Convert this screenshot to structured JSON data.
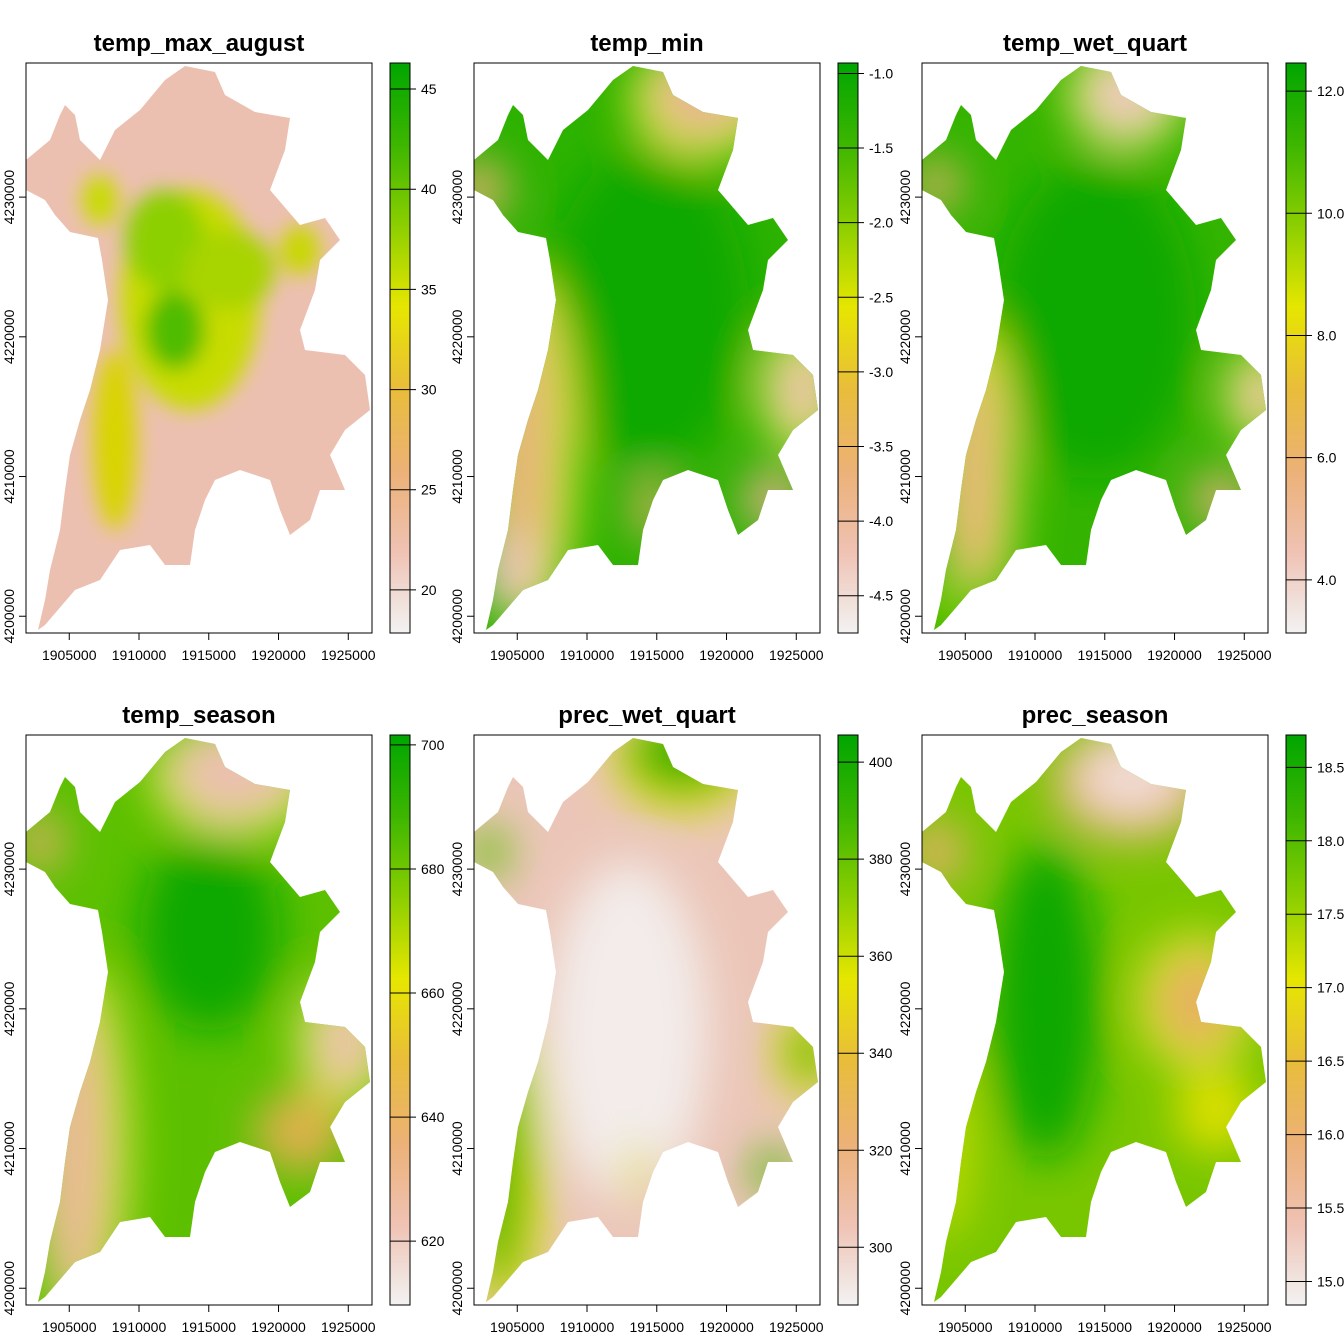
{
  "chart_data": [
    {
      "type": "heatmap",
      "title": "temp_max_august",
      "xlim": [
        1901900,
        1926700
      ],
      "ylim": [
        4198800,
        4239600
      ],
      "x_ticks": [
        1905000,
        1910000,
        1915000,
        1920000,
        1925000
      ],
      "x_tick_labels": [
        "1905000",
        "1910000",
        "1915000",
        "1920000",
        "1925000"
      ],
      "y_ticks": [
        4200000,
        4210000,
        4220000,
        4230000
      ],
      "y_tick_labels": [
        "4200000",
        "4210000",
        "4220000",
        "4230000"
      ],
      "legend_range": [
        17.85,
        46.3
      ],
      "legend_ticks": [
        20,
        25,
        30,
        35,
        40,
        45
      ],
      "legend_tick_labels": [
        "20",
        "25",
        "30",
        "35",
        "40",
        "45"
      ]
    },
    {
      "type": "heatmap",
      "title": "temp_min",
      "xlim": [
        1901900,
        1926700
      ],
      "ylim": [
        4198800,
        4239600
      ],
      "x_ticks": [
        1905000,
        1910000,
        1915000,
        1920000,
        1925000
      ],
      "x_tick_labels": [
        "1905000",
        "1910000",
        "1915000",
        "1920000",
        "1925000"
      ],
      "y_ticks": [
        4200000,
        4210000,
        4220000,
        4230000
      ],
      "y_tick_labels": [
        "4200000",
        "4210000",
        "4220000",
        "4230000"
      ],
      "legend_range": [
        -4.75,
        -0.93
      ],
      "legend_ticks": [
        -4.5,
        -4.0,
        -3.5,
        -3.0,
        -2.5,
        -2.0,
        -1.5,
        -1.0
      ],
      "legend_tick_labels": [
        "-4.5",
        "-4.0",
        "-3.5",
        "-3.0",
        "-2.5",
        "-2.0",
        "-1.5",
        "-1.0"
      ]
    },
    {
      "type": "heatmap",
      "title": "temp_wet_quart",
      "xlim": [
        1901900,
        1926700
      ],
      "ylim": [
        4198800,
        4239600
      ],
      "x_ticks": [
        1905000,
        1910000,
        1915000,
        1920000,
        1925000
      ],
      "x_tick_labels": [
        "1905000",
        "1910000",
        "1915000",
        "1920000",
        "1925000"
      ],
      "y_ticks": [
        4200000,
        4210000,
        4220000,
        4230000
      ],
      "y_tick_labels": [
        "4200000",
        "4210000",
        "4220000",
        "4230000"
      ],
      "legend_range": [
        3.13,
        12.46
      ],
      "legend_ticks": [
        4,
        6,
        8,
        10,
        12
      ],
      "legend_tick_labels": [
        "4.0",
        "6.0",
        "8.0",
        "10.0",
        "12.0"
      ]
    },
    {
      "type": "heatmap",
      "title": "temp_season",
      "xlim": [
        1901900,
        1926700
      ],
      "ylim": [
        4198800,
        4239600
      ],
      "x_ticks": [
        1905000,
        1910000,
        1915000,
        1920000,
        1925000
      ],
      "x_tick_labels": [
        "1905000",
        "1910000",
        "1915000",
        "1920000",
        "1925000"
      ],
      "y_ticks": [
        4200000,
        4210000,
        4220000,
        4230000
      ],
      "y_tick_labels": [
        "4200000",
        "4210000",
        "4220000",
        "4230000"
      ],
      "legend_range": [
        609.7,
        701.6
      ],
      "legend_ticks": [
        620,
        640,
        660,
        680,
        700
      ],
      "legend_tick_labels": [
        "620",
        "640",
        "660",
        "680",
        "700"
      ]
    },
    {
      "type": "heatmap",
      "title": "prec_wet_quart",
      "xlim": [
        1901900,
        1926700
      ],
      "ylim": [
        4198800,
        4239600
      ],
      "x_ticks": [
        1905000,
        1910000,
        1915000,
        1920000,
        1925000
      ],
      "x_tick_labels": [
        "1905000",
        "1910000",
        "1915000",
        "1920000",
        "1925000"
      ],
      "y_ticks": [
        4200000,
        4210000,
        4220000,
        4230000
      ],
      "y_tick_labels": [
        "4200000",
        "4210000",
        "4220000",
        "4230000"
      ],
      "legend_range": [
        288.1,
        405.6
      ],
      "legend_ticks": [
        300,
        320,
        340,
        360,
        380,
        400
      ],
      "legend_tick_labels": [
        "300",
        "320",
        "340",
        "360",
        "380",
        "400"
      ]
    },
    {
      "type": "heatmap",
      "title": "prec_season",
      "xlim": [
        1901900,
        1926700
      ],
      "ylim": [
        4198800,
        4239600
      ],
      "x_ticks": [
        1905000,
        1910000,
        1915000,
        1920000,
        1925000
      ],
      "x_tick_labels": [
        "1905000",
        "1910000",
        "1915000",
        "1920000",
        "1925000"
      ],
      "y_ticks": [
        4200000,
        4210000,
        4220000,
        4230000
      ],
      "y_tick_labels": [
        "4200000",
        "4210000",
        "4220000",
        "4230000"
      ],
      "legend_range": [
        14.84,
        18.72
      ],
      "legend_ticks": [
        15,
        15.5,
        16,
        16.5,
        17,
        17.5,
        18,
        18.5
      ],
      "legend_tick_labels": [
        "15.0",
        "15.5",
        "16.0",
        "16.5",
        "17.0",
        "17.5",
        "18.0",
        "18.5"
      ]
    }
  ],
  "colors": {
    "ramp": [
      "#00A600",
      "#3DB600",
      "#8CCF00",
      "#E6E600",
      "#E9BD3A",
      "#ECB176",
      "#EFC2B3",
      "#F2F2F2"
    ]
  }
}
